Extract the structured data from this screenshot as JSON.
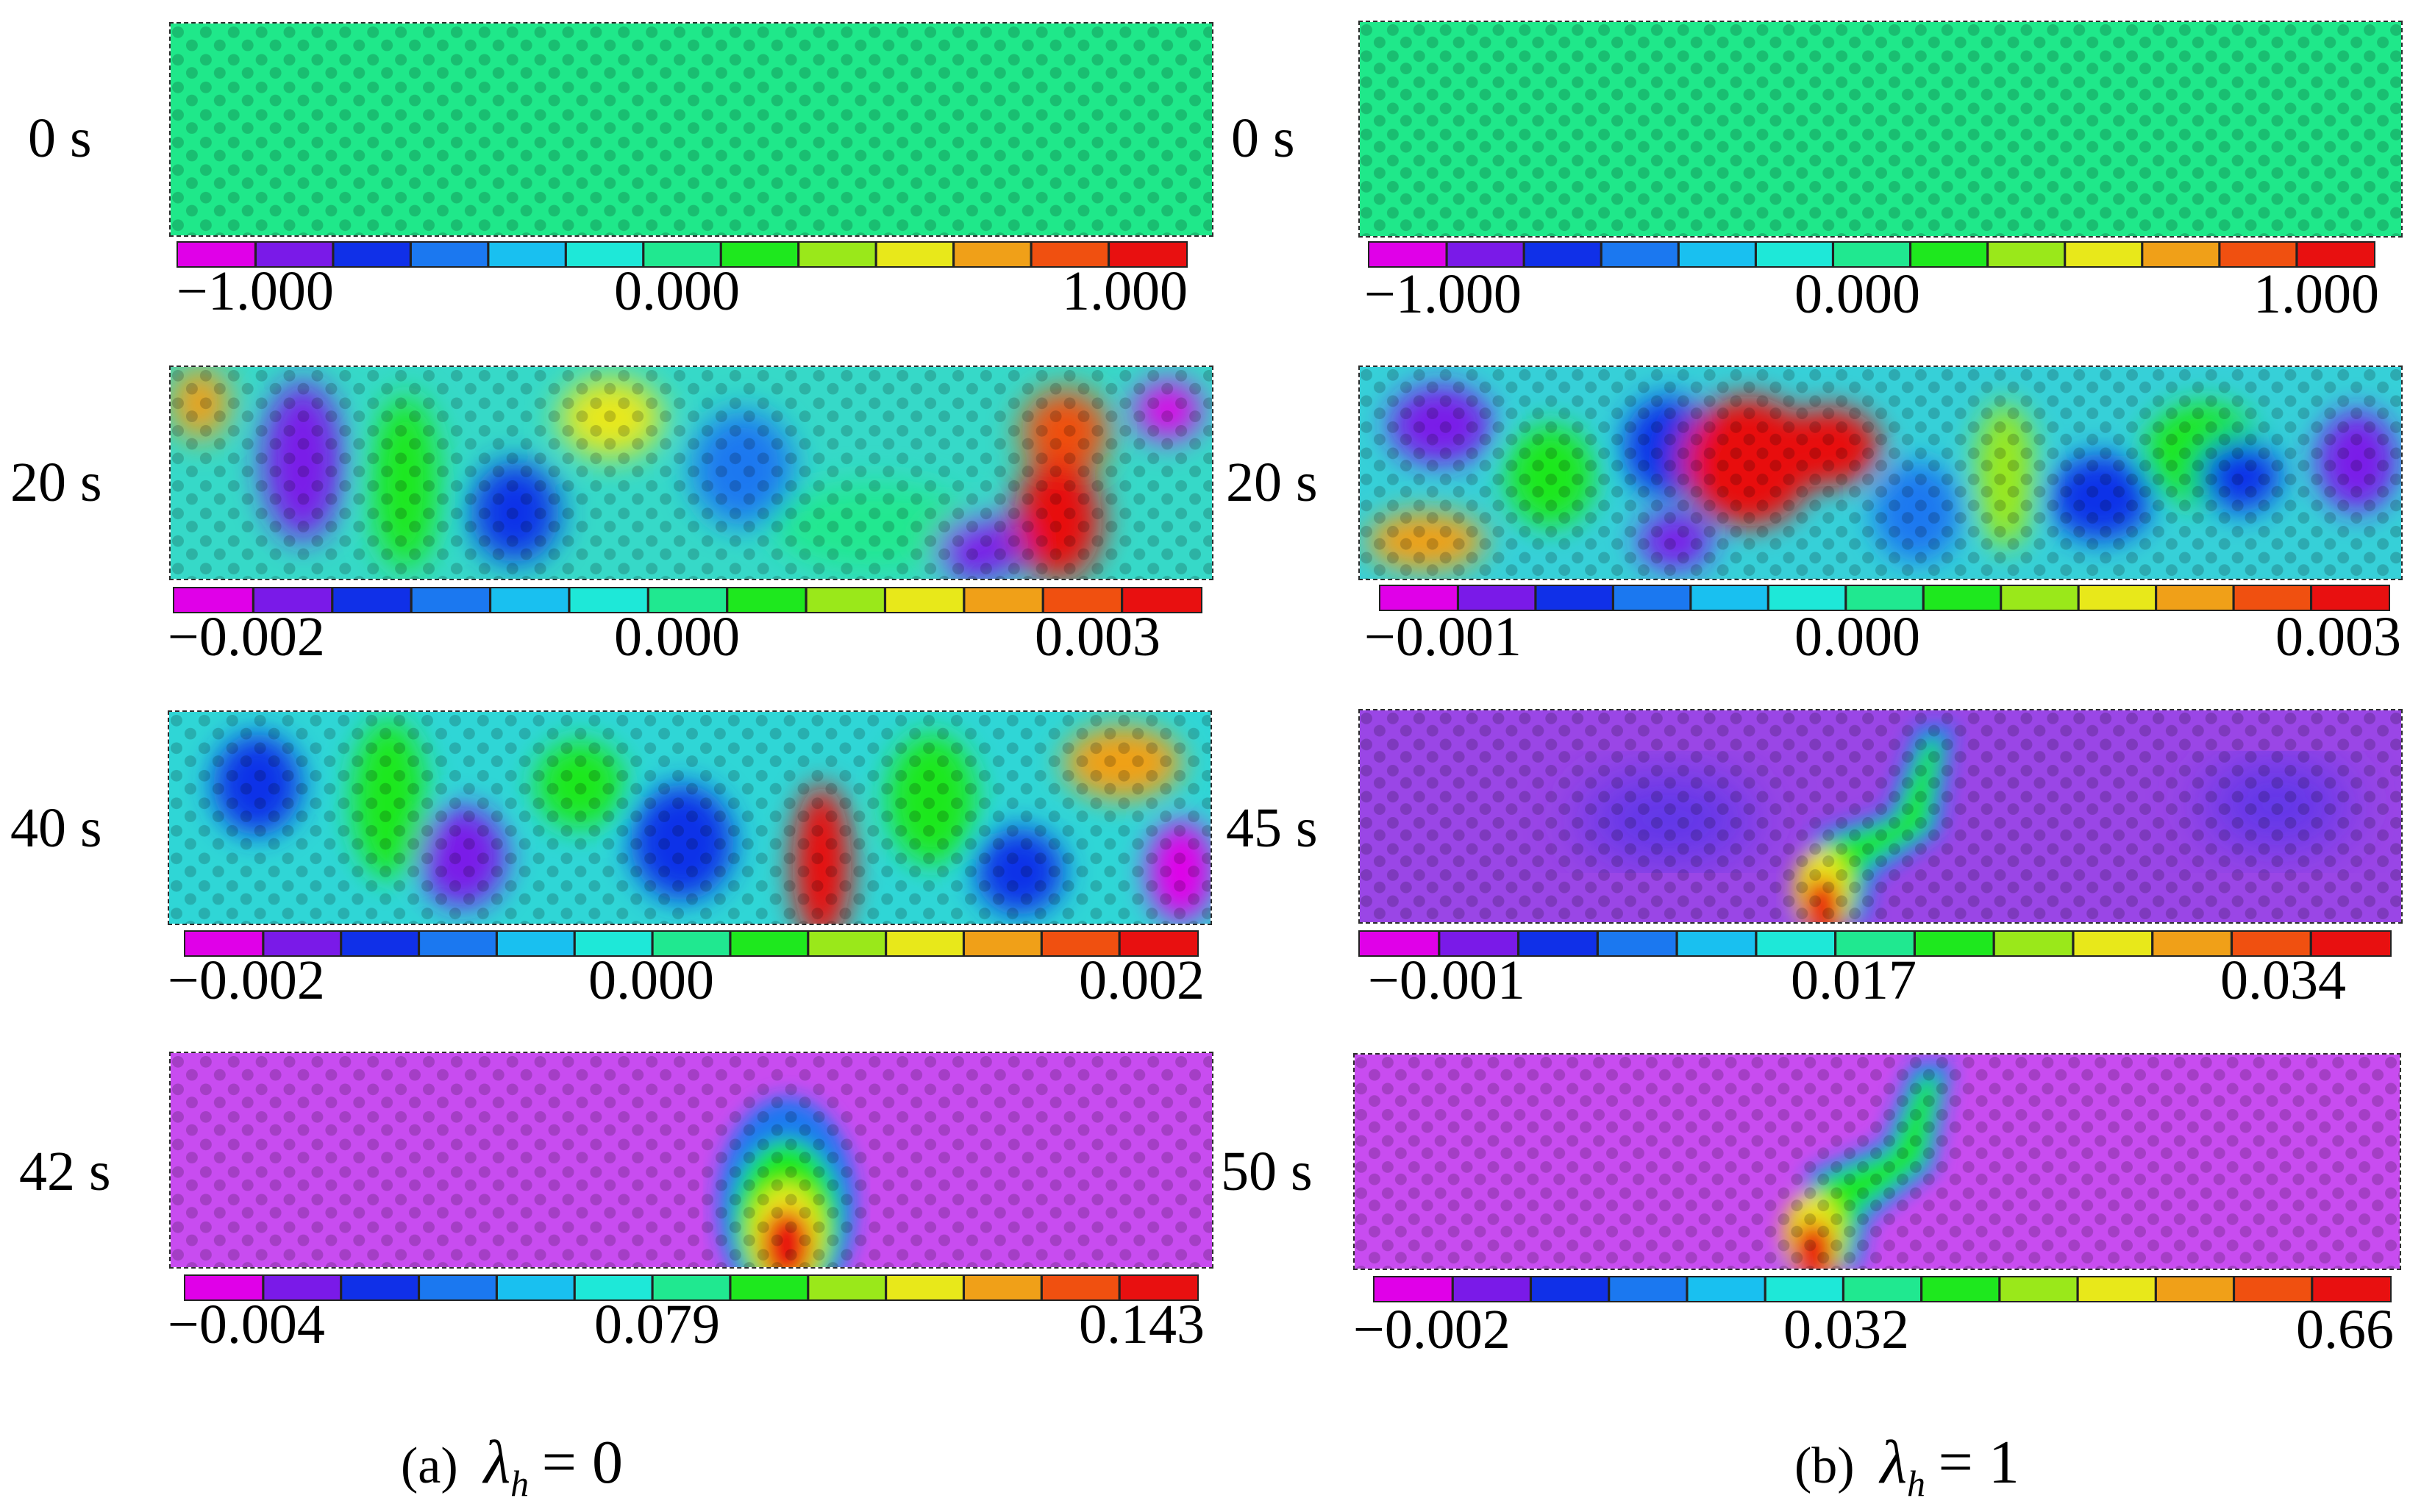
{
  "panels": [
    {
      "caption": {
        "label": "(a)",
        "symbol": "λ",
        "subscript": "h",
        "equation": "= 0"
      },
      "frames": [
        {
          "time": "0 s",
          "colorbar": {
            "min": "−1.000",
            "mid": "0.000",
            "max": "1.000"
          },
          "background": "#1fe88a"
        },
        {
          "time": "20 s",
          "colorbar": {
            "min": "−0.002",
            "mid": "0.000",
            "max": "0.003"
          },
          "background": "#36d9c8"
        },
        {
          "time": "40 s",
          "colorbar": {
            "min": "−0.002",
            "mid": "0.000",
            "max": "0.002"
          },
          "background": "#2fd6d6"
        },
        {
          "time": "42 s",
          "colorbar": {
            "min": "−0.004",
            "mid": "0.079",
            "max": "0.143"
          },
          "background": "#c84cf0"
        }
      ]
    },
    {
      "caption": {
        "label": "(b)",
        "symbol": "λ",
        "subscript": "h",
        "equation": "= 1"
      },
      "frames": [
        {
          "time": "0 s",
          "colorbar": {
            "min": "−1.000",
            "mid": "0.000",
            "max": "1.000"
          },
          "background": "#1fe88a"
        },
        {
          "time": "20 s",
          "colorbar": {
            "min": "−0.001",
            "mid": "0.000",
            "max": "0.003"
          },
          "background": "#36d0d8"
        },
        {
          "time": "45 s",
          "colorbar": {
            "min": "−0.001",
            "mid": "0.017",
            "max": "0.034"
          },
          "background": "#9a46e6"
        },
        {
          "time": "50 s",
          "colorbar": {
            "min": "−0.002",
            "mid": "0.032",
            "max": "0.66"
          },
          "background": "#c84cf0"
        }
      ]
    }
  ],
  "colormap": [
    "#e000e8",
    "#7a1ae8",
    "#1030e8",
    "#1b78f0",
    "#19c0f0",
    "#1ee8d8",
    "#20e890",
    "#1ee81e",
    "#9ae81a",
    "#e8e81a",
    "#f0a018",
    "#f05010",
    "#e81010"
  ]
}
